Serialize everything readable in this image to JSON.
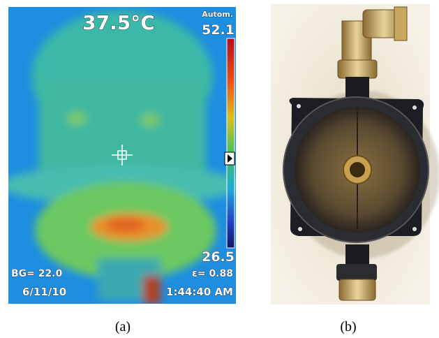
{
  "panels": [
    {
      "caption": "(a)",
      "overlay": {
        "temperature": "37.5°C",
        "mode": "Autom.",
        "scale_max": "52.1",
        "scale_min": "26.5",
        "background": "BG= 22.0",
        "emissivity": "ε= 0.88",
        "date": "6/11/10",
        "time": "1:44:40 AM"
      }
    },
    {
      "caption": "(b)"
    }
  ]
}
